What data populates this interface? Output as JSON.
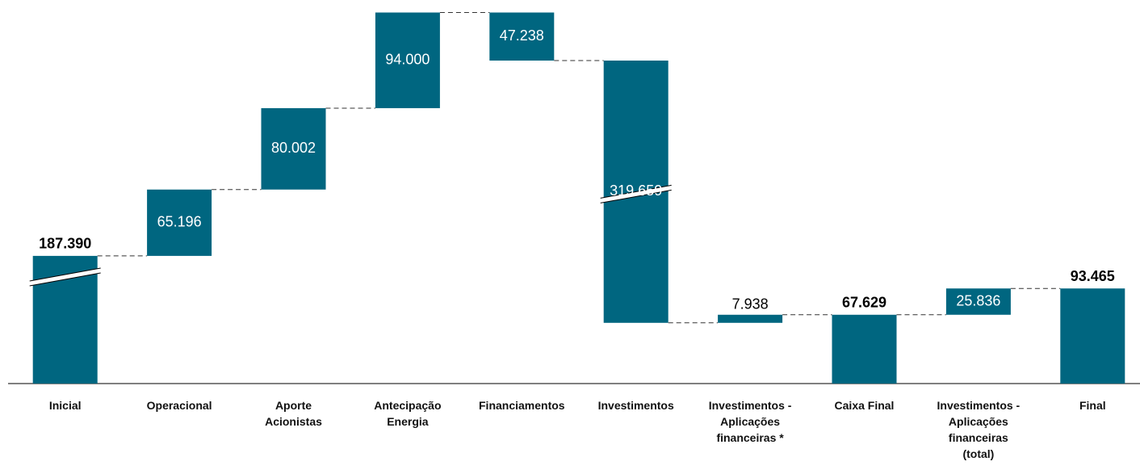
{
  "chart_data": {
    "type": "waterfall",
    "categories": [
      "Inicial",
      "Operacional",
      "Aporte Acionistas",
      "Antecipação Energia",
      "Financiamentos",
      "Investimentos",
      "Investimentos - Aplicações financeiras *",
      "Caixa Final",
      "Investimentos - Aplicações financeiras (total)",
      "Final"
    ],
    "values": [
      187390,
      65196,
      80002,
      94000,
      -47238,
      -319659,
      7938,
      67629,
      25836,
      93465
    ],
    "value_labels": [
      "187.390",
      "65.196",
      "80.002",
      "94.000",
      "47.238",
      "319.659",
      "7.938",
      "67.629",
      "25.836",
      "93.465"
    ],
    "kinds": [
      "total",
      "delta",
      "delta",
      "delta",
      "delta",
      "delta",
      "delta",
      "total",
      "delta",
      "total"
    ],
    "axis_breaks": [
      0,
      5
    ],
    "color": "#006680"
  }
}
